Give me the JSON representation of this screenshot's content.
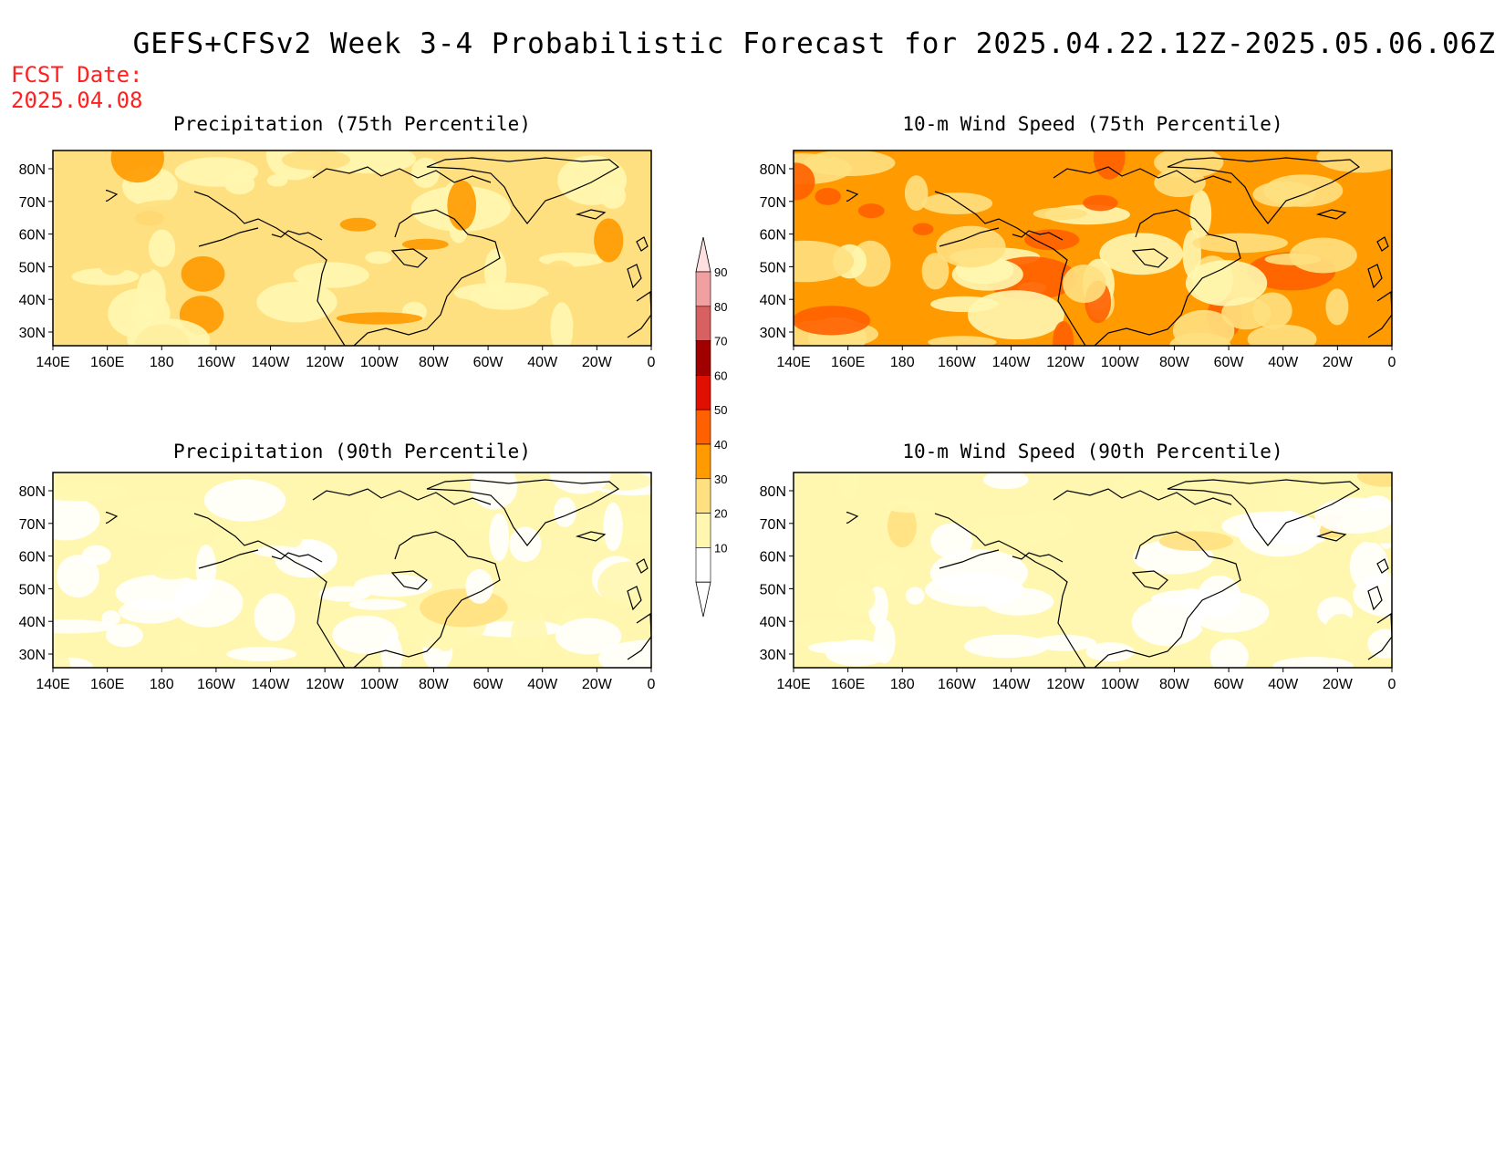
{
  "title": "GEFS+CFSv2 Week 3-4 Probabilistic Forecast for 2025.04.22.12Z-2025.05.06.06Z",
  "fcst_date_label": "FCST Date:",
  "fcst_date": "2025.04.08",
  "lon_ticks": [
    "140E",
    "160E",
    "180",
    "160W",
    "140W",
    "120W",
    "100W",
    "80W",
    "60W",
    "40W",
    "20W",
    "0"
  ],
  "lat_ticks": [
    "80N",
    "70N",
    "60N",
    "50N",
    "40N",
    "30N"
  ],
  "colors": {
    "fcst_date": "#ff2020",
    "levels": [
      "#ffffff",
      "#fff7b0",
      "#ffe080",
      "#ff9a00",
      "#ff6000",
      "#e01000",
      "#a00000",
      "#d86060",
      "#f0a0a0",
      "#ffe0e0"
    ]
  },
  "colorbar": {
    "labels": [
      "10",
      "20",
      "30",
      "40",
      "50",
      "60",
      "70",
      "80",
      "90"
    ]
  },
  "panels": [
    {
      "id": "precip75",
      "title": "Precipitation (75th Percentile)",
      "dominant_level": 2
    },
    {
      "id": "wind75",
      "title": "10-m Wind Speed (75th Percentile)",
      "dominant_level": 3
    },
    {
      "id": "precip90",
      "title": "Precipitation (90th Percentile)",
      "dominant_level": 1
    },
    {
      "id": "wind90",
      "title": "10-m Wind Speed (90th Percentile)",
      "dominant_level": 1
    }
  ]
}
